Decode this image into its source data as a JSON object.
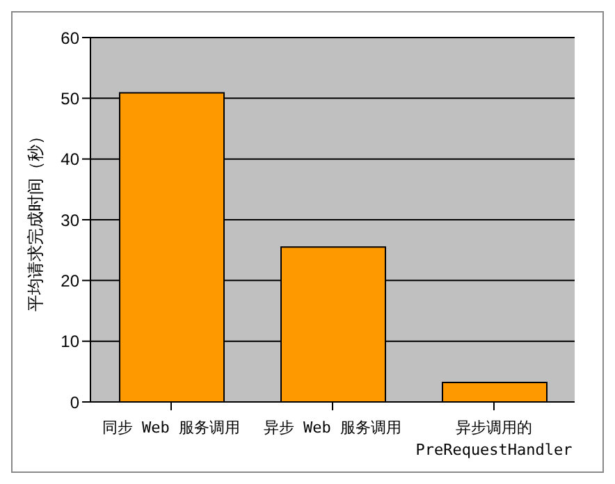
{
  "chart_data": {
    "type": "bar",
    "ylabel": "平均请求完成时间（秒）",
    "categories": [
      "同步 Web 服务调用",
      "异步 Web 服务调用",
      "异步调用的\nPreRequestHandler"
    ],
    "values": [
      50.9,
      25.5,
      3.2
    ],
    "color": "#ff9900",
    "ylim": [
      0,
      60
    ],
    "yticks": [
      0,
      10,
      20,
      30,
      40,
      50,
      60
    ],
    "grid": "y"
  }
}
